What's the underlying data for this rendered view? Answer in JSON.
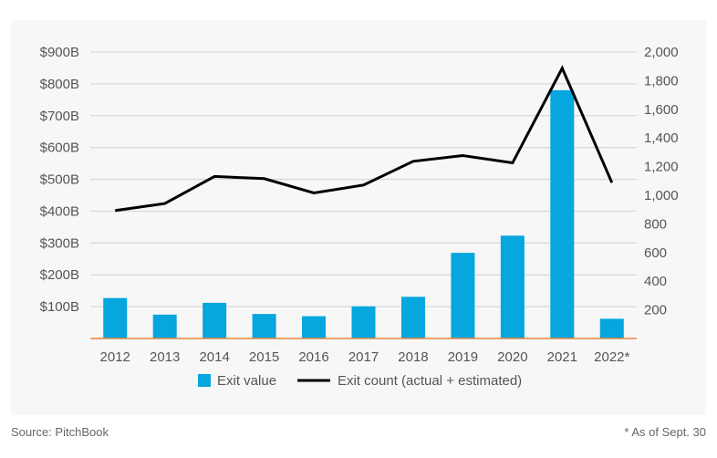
{
  "chart_data": {
    "type": "bar+line",
    "categories": [
      "2012",
      "2013",
      "2014",
      "2015",
      "2016",
      "2017",
      "2018",
      "2019",
      "2020",
      "2021",
      "2022*"
    ],
    "series": [
      {
        "name": "Exit value",
        "type": "bar",
        "axis": "left",
        "color": "#06a6de",
        "values": [
          127,
          75,
          112,
          77,
          70,
          101,
          131,
          269,
          323,
          780,
          62
        ]
      },
      {
        "name": "Exit count (actual + estimated)",
        "type": "line",
        "axis": "right",
        "color": "#000000",
        "values": [
          893,
          942,
          1131,
          1116,
          1016,
          1071,
          1237,
          1277,
          1226,
          1887,
          1088
        ]
      }
    ],
    "y_left": {
      "ticks": [
        100,
        200,
        300,
        400,
        500,
        600,
        700,
        800,
        900
      ],
      "tick_labels": [
        "$100B",
        "$200B",
        "$300B",
        "$400B",
        "$500B",
        "$600B",
        "$700B",
        "$800B",
        "$900B"
      ],
      "range": [
        0,
        900
      ]
    },
    "y_right": {
      "ticks": [
        200,
        400,
        600,
        800,
        1000,
        1200,
        1400,
        1600,
        1800,
        2000
      ],
      "tick_labels": [
        "200",
        "400",
        "600",
        "800",
        "1,000",
        "1,200",
        "1,400",
        "1,600",
        "1,800",
        "2,000"
      ],
      "range": [
        0,
        2000
      ]
    },
    "grid": true,
    "legend": "bottom",
    "baseline_color": "#e8853d"
  },
  "footer": {
    "source": "Source: PitchBook",
    "note": "* As of Sept. 30"
  }
}
